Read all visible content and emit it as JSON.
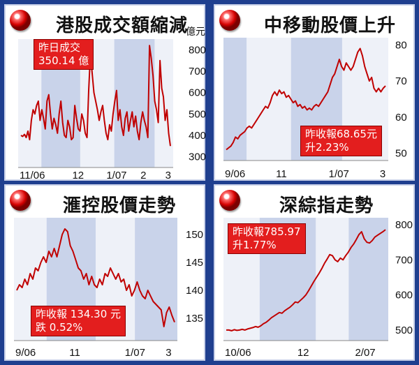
{
  "panels": [
    {
      "title": "港股成交額縮減",
      "unit": "億元",
      "box": [
        "昨日成交",
        "350.14 億"
      ]
    },
    {
      "title": "中移動股價上升",
      "unit": "",
      "box": [
        "昨收報68.65元",
        "升2.23%"
      ]
    },
    {
      "title": "滙控股價走勢",
      "unit": "",
      "box": [
        "昨收報 134.30 元",
        "跌 0.52%"
      ]
    },
    {
      "title": "深綜指走勢",
      "unit": "",
      "box": [
        "昨收報785.97",
        "升1.77%"
      ]
    }
  ],
  "chart_data": [
    {
      "type": "line",
      "title": "港股成交額縮減",
      "ylabel": "億元",
      "ylim": [
        250,
        850
      ],
      "yticks": [
        300,
        400,
        500,
        600,
        700,
        800
      ],
      "xticks": [
        "11/06",
        "12",
        "1/07",
        "2",
        "3"
      ],
      "y": [
        400,
        395,
        405,
        390,
        420,
        380,
        470,
        520,
        500,
        540,
        560,
        470,
        520,
        480,
        430,
        560,
        590,
        500,
        430,
        480,
        450,
        410,
        500,
        560,
        460,
        400,
        390,
        470,
        440,
        380,
        390,
        540,
        480,
        430,
        420,
        500,
        470,
        410,
        390,
        610,
        780,
        690,
        600,
        560,
        520,
        470,
        510,
        540,
        470,
        410,
        380,
        450,
        420,
        500,
        560,
        610,
        470,
        520,
        440,
        400,
        480,
        510,
        420,
        470,
        510,
        440,
        490,
        420,
        380,
        460,
        510,
        470,
        440,
        390,
        820,
        760,
        680,
        560,
        520,
        460,
        750,
        620,
        580,
        470,
        520,
        410,
        350
      ],
      "annotation": [
        "昨日成交",
        "350.14 億"
      ]
    },
    {
      "type": "line",
      "title": "中移動股價上升",
      "ylim": [
        48,
        82
      ],
      "yticks": [
        50,
        60,
        70,
        80
      ],
      "xticks": [
        "9/06",
        "11",
        "1/07",
        "3"
      ],
      "y": [
        51,
        51.5,
        52,
        53,
        54.5,
        54,
        55,
        55.5,
        56,
        57,
        57.5,
        57,
        58,
        59,
        60,
        61,
        62,
        63,
        62.5,
        64,
        66,
        67,
        66,
        67.5,
        66.5,
        67,
        65.5,
        66,
        65,
        64,
        64.5,
        63,
        63.5,
        62.5,
        63,
        62,
        62.5,
        62,
        63,
        63.5,
        63,
        64,
        65,
        66,
        67,
        69,
        71,
        72,
        74,
        76,
        74,
        73,
        75,
        74,
        73,
        74,
        76,
        78,
        79,
        77,
        74,
        72,
        70,
        71,
        68,
        67,
        68,
        67,
        68,
        68.65
      ],
      "annotation": [
        "昨收報68.65元",
        "升2.23%"
      ]
    },
    {
      "type": "line",
      "title": "滙控股價走勢",
      "ylim": [
        131,
        153
      ],
      "yticks": [
        135,
        140,
        145,
        150
      ],
      "xticks": [
        "9/06",
        "11",
        "1/07",
        "3"
      ],
      "y": [
        140,
        141,
        140.5,
        142,
        141,
        143,
        142,
        144,
        143.5,
        145,
        146,
        145,
        147,
        146,
        147.5,
        146,
        148,
        150,
        151,
        150.5,
        148,
        147,
        145.5,
        144,
        143.5,
        142,
        143,
        141,
        142.5,
        141,
        140.5,
        142,
        141,
        143,
        142.5,
        144,
        143,
        142,
        143,
        141.5,
        142,
        140,
        141,
        139,
        140,
        141.5,
        140,
        139,
        138.5,
        140,
        139,
        138,
        137.5,
        137,
        136.5,
        133.5,
        136,
        137,
        135.5,
        134.3
      ],
      "annotation": [
        "昨收報 134.30 元",
        "跌 0.52%"
      ]
    },
    {
      "type": "line",
      "title": "深綜指走勢",
      "ylim": [
        470,
        820
      ],
      "yticks": [
        500,
        600,
        700,
        800
      ],
      "xticks": [
        "10/06",
        "12",
        "2/07"
      ],
      "y": [
        500,
        500,
        498,
        501,
        499,
        500,
        502,
        500,
        503,
        505,
        507,
        510,
        508,
        512,
        518,
        522,
        528,
        535,
        540,
        545,
        550,
        548,
        555,
        560,
        565,
        572,
        580,
        578,
        585,
        592,
        600,
        612,
        625,
        638,
        650,
        662,
        675,
        690,
        702,
        715,
        712,
        700,
        695,
        705,
        700,
        712,
        722,
        735,
        745,
        758,
        772,
        780,
        760,
        750,
        748,
        755,
        765,
        770,
        775,
        780,
        786
      ],
      "annotation": [
        "昨收報785.97",
        "升1.77%"
      ]
    }
  ],
  "colors": {
    "background": "#1f3f8f",
    "line": "#c00000",
    "band": "#c9d3ea",
    "box": "#e31e1e"
  }
}
